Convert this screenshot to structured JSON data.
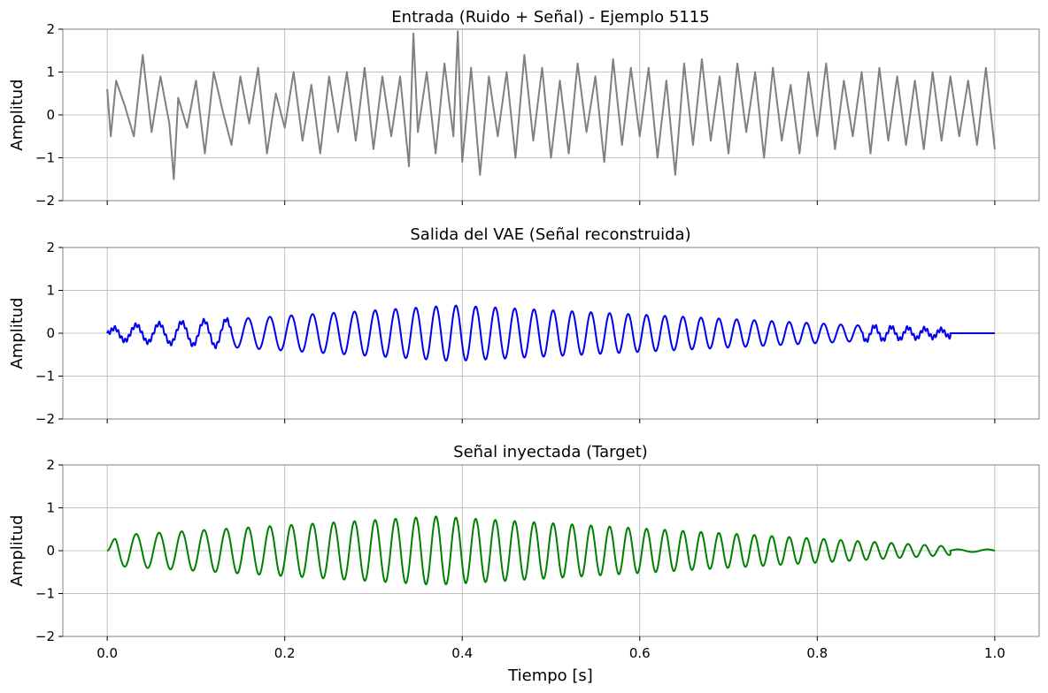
{
  "chart_data": [
    {
      "type": "line",
      "title": "Entrada (Ruido + Señal) - Ejemplo 5115",
      "ylabel": "Amplitud",
      "xlabel": "",
      "xlim": [
        -0.05,
        1.05
      ],
      "ylim": [
        -2,
        2
      ],
      "xticks": [
        0.0,
        0.2,
        0.4,
        0.6,
        0.8,
        1.0
      ],
      "yticks": [
        -2,
        -1,
        0,
        1,
        2
      ],
      "show_xtick_labels": false,
      "grid": true,
      "series": [
        {
          "color": "#808080",
          "kind": "noisy_input",
          "points": [
            [
              0.0,
              0.6
            ],
            [
              0.004,
              -0.5
            ],
            [
              0.01,
              0.8
            ],
            [
              0.02,
              0.2
            ],
            [
              0.03,
              -0.5
            ],
            [
              0.04,
              1.4
            ],
            [
              0.05,
              -0.4
            ],
            [
              0.06,
              0.9
            ],
            [
              0.07,
              -0.2
            ],
            [
              0.075,
              -1.5
            ],
            [
              0.08,
              0.4
            ],
            [
              0.09,
              -0.3
            ],
            [
              0.1,
              0.8
            ],
            [
              0.11,
              -0.9
            ],
            [
              0.12,
              1.0
            ],
            [
              0.13,
              0.1
            ],
            [
              0.14,
              -0.7
            ],
            [
              0.15,
              0.9
            ],
            [
              0.16,
              -0.2
            ],
            [
              0.17,
              1.1
            ],
            [
              0.18,
              -0.9
            ],
            [
              0.19,
              0.5
            ],
            [
              0.2,
              -0.3
            ],
            [
              0.21,
              1.0
            ],
            [
              0.22,
              -0.6
            ],
            [
              0.23,
              0.7
            ],
            [
              0.24,
              -0.9
            ],
            [
              0.25,
              0.9
            ],
            [
              0.26,
              -0.4
            ],
            [
              0.27,
              1.0
            ],
            [
              0.28,
              -0.6
            ],
            [
              0.29,
              1.1
            ],
            [
              0.3,
              -0.8
            ],
            [
              0.31,
              0.9
            ],
            [
              0.32,
              -0.5
            ],
            [
              0.33,
              0.9
            ],
            [
              0.34,
              -1.2
            ],
            [
              0.345,
              1.9
            ],
            [
              0.35,
              -0.4
            ],
            [
              0.36,
              1.0
            ],
            [
              0.37,
              -0.9
            ],
            [
              0.38,
              1.2
            ],
            [
              0.39,
              -0.5
            ],
            [
              0.395,
              1.95
            ],
            [
              0.4,
              -1.1
            ],
            [
              0.41,
              1.1
            ],
            [
              0.42,
              -1.4
            ],
            [
              0.43,
              0.9
            ],
            [
              0.44,
              -0.5
            ],
            [
              0.45,
              1.0
            ],
            [
              0.46,
              -1.0
            ],
            [
              0.47,
              1.4
            ],
            [
              0.48,
              -0.6
            ],
            [
              0.49,
              1.1
            ],
            [
              0.5,
              -1.0
            ],
            [
              0.51,
              0.8
            ],
            [
              0.52,
              -0.9
            ],
            [
              0.53,
              1.2
            ],
            [
              0.54,
              -0.4
            ],
            [
              0.55,
              0.9
            ],
            [
              0.56,
              -1.1
            ],
            [
              0.57,
              1.3
            ],
            [
              0.58,
              -0.7
            ],
            [
              0.59,
              1.1
            ],
            [
              0.6,
              -0.5
            ],
            [
              0.61,
              1.1
            ],
            [
              0.62,
              -1.0
            ],
            [
              0.63,
              0.8
            ],
            [
              0.64,
              -1.4
            ],
            [
              0.65,
              1.2
            ],
            [
              0.66,
              -0.7
            ],
            [
              0.67,
              1.3
            ],
            [
              0.68,
              -0.6
            ],
            [
              0.69,
              0.9
            ],
            [
              0.7,
              -0.9
            ],
            [
              0.71,
              1.2
            ],
            [
              0.72,
              -0.4
            ],
            [
              0.73,
              1.0
            ],
            [
              0.74,
              -1.0
            ],
            [
              0.75,
              1.1
            ],
            [
              0.76,
              -0.6
            ],
            [
              0.77,
              0.7
            ],
            [
              0.78,
              -0.9
            ],
            [
              0.79,
              1.0
            ],
            [
              0.8,
              -0.5
            ],
            [
              0.81,
              1.2
            ],
            [
              0.82,
              -0.8
            ],
            [
              0.83,
              0.8
            ],
            [
              0.84,
              -0.5
            ],
            [
              0.85,
              1.0
            ],
            [
              0.86,
              -0.9
            ],
            [
              0.87,
              1.1
            ],
            [
              0.88,
              -0.6
            ],
            [
              0.89,
              0.9
            ],
            [
              0.9,
              -0.7
            ],
            [
              0.91,
              0.8
            ],
            [
              0.92,
              -0.8
            ],
            [
              0.93,
              1.0
            ],
            [
              0.94,
              -0.6
            ],
            [
              0.95,
              0.9
            ],
            [
              0.96,
              -0.5
            ],
            [
              0.97,
              0.8
            ],
            [
              0.98,
              -0.7
            ],
            [
              0.99,
              1.1
            ],
            [
              1.0,
              -0.8
            ]
          ]
        }
      ]
    },
    {
      "type": "line",
      "title": "Salida del VAE (Señal reconstruida)",
      "ylabel": "Amplitud",
      "xlabel": "",
      "xlim": [
        -0.05,
        1.05
      ],
      "ylim": [
        -2,
        2
      ],
      "xticks": [
        0.0,
        0.2,
        0.4,
        0.6,
        0.8,
        1.0
      ],
      "yticks": [
        -2,
        -1,
        0,
        1,
        2
      ],
      "show_xtick_labels": false,
      "grid": true,
      "series": [
        {
          "color": "#0000ee",
          "kind": "reconstructed",
          "chirp": {
            "t_end": 0.95,
            "cycles_per_s": 38,
            "peak_t": 0.39,
            "peak_amp": 0.65,
            "start_amp": 0.15,
            "end_amp": 0.08,
            "offset": -0.05
          },
          "flat_after": 0.95
        }
      ]
    },
    {
      "type": "line",
      "title": "Señal inyectada (Target)",
      "ylabel": "Amplitud",
      "xlabel": "Tiempo [s]",
      "xlim": [
        -0.05,
        1.05
      ],
      "ylim": [
        -2,
        2
      ],
      "xticks": [
        0.0,
        0.2,
        0.4,
        0.6,
        0.8,
        1.0
      ],
      "xtick_labels": [
        "0.0",
        "0.2",
        "0.4",
        "0.6",
        "0.8",
        "1.0"
      ],
      "yticks": [
        -2,
        -1,
        0,
        1,
        2
      ],
      "show_xtick_labels": true,
      "grid": true,
      "series": [
        {
          "color": "#008000",
          "kind": "target",
          "chirp": {
            "t_end": 0.95,
            "cycles_per_s": 38,
            "peak_t": 0.37,
            "peak_amp": 0.8,
            "start_amp": 0.35,
            "end_amp": 0.1,
            "offset": 0.0
          },
          "tail_after": 0.95
        }
      ]
    }
  ]
}
